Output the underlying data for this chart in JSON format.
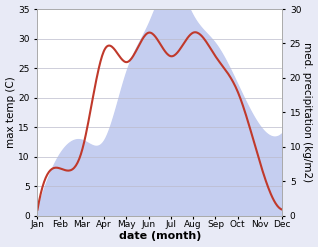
{
  "months": [
    "Jan",
    "Feb",
    "Mar",
    "Apr",
    "May",
    "Jun",
    "Jul",
    "Aug",
    "Sep",
    "Oct",
    "Nov",
    "Dec"
  ],
  "temperature": [
    1,
    8,
    11,
    28,
    26,
    31,
    27,
    31,
    27,
    21,
    9,
    1
  ],
  "precipitation": [
    1,
    9,
    11,
    11,
    21,
    28,
    34,
    29,
    25,
    19,
    13,
    12
  ],
  "temp_color": "#c0392b",
  "precip_color": "#c5cef0",
  "precip_alpha": 1.0,
  "temp_ylim": [
    0,
    35
  ],
  "precip_ylim": [
    0,
    30
  ],
  "xlabel": "date (month)",
  "ylabel_left": "max temp (C)",
  "ylabel_right": "med. precipitation (kg/m2)",
  "bg_color": "#e8eaf6",
  "plot_bg_color": "#e8eaf6",
  "label_fontsize": 7.5,
  "tick_fontsize": 6.5,
  "xlabel_fontsize": 8
}
